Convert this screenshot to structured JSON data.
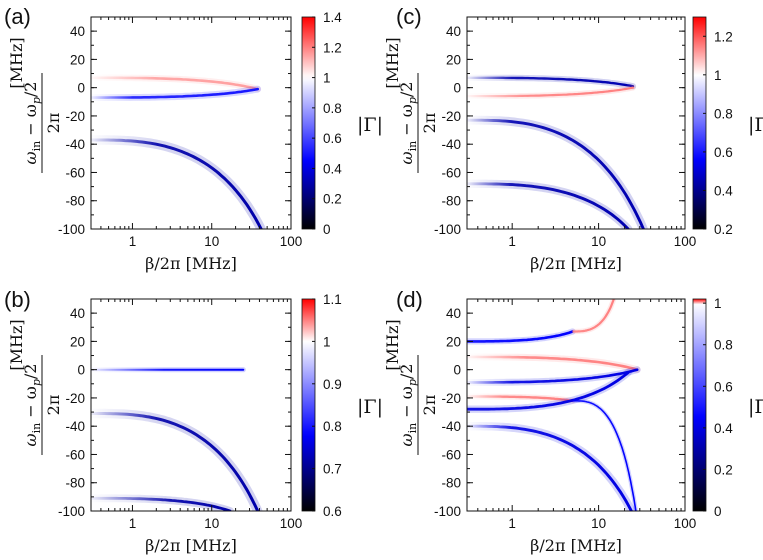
{
  "chart_data": [
    {
      "type": "heatmap",
      "panel_label": "(a)",
      "xlabel": "β/2π [MHz]",
      "ylabel_num": "ω",
      "ylabel_sub": "in",
      "ylabel_rest": " − ω",
      "ylabel_sub2": "p",
      "ylabel_tail": "/2",
      "ylabel_den": "2π",
      "ylabel_unit": "[MHz]",
      "colorbar_label": "|Γ|",
      "xscale": "log",
      "xlim": [
        0.3,
        100
      ],
      "ylim": [
        -100,
        50
      ],
      "x_ticks": [
        1,
        10,
        100
      ],
      "x_tick_labels": [
        "1",
        "10",
        "100"
      ],
      "y_ticks": [
        40,
        20,
        0,
        -20,
        -40,
        -60,
        -80,
        -100
      ],
      "y_tick_labels": [
        "40",
        "20",
        "0",
        "-20",
        "-40",
        "-60",
        "-80",
        "-100"
      ],
      "colorbar": {
        "min": 0,
        "max": 1.4,
        "white_at": 1,
        "ticks": [
          0,
          0.2,
          0.4,
          0.6,
          0.8,
          1,
          1.2,
          1.4
        ],
        "tick_labels": [
          "0",
          "0.2",
          "0.4",
          "0.6",
          "0.8",
          "1",
          "1.2",
          "1.4"
        ]
      },
      "bands": [
        {
          "name": "upper-red-branch",
          "y0": 7,
          "x_end": 38,
          "y_end": -1,
          "bend": 1.2,
          "value": 1.15,
          "w0": 2.5,
          "w1": 1.6,
          "x_fade": 2
        },
        {
          "name": "lower-blue-branch",
          "y0": -7,
          "x_end": 38,
          "y_end": -1,
          "bend": 1.2,
          "value": 0.5,
          "w0": 2.6,
          "w1": 1.6,
          "x_fade": 1
        },
        {
          "name": "dip-branch",
          "y0": -37,
          "x_end": 42,
          "y_end": -100,
          "bend": 1.9,
          "value": 0.3,
          "w0": 3.6,
          "w1": 1.2,
          "x_fade": 2
        }
      ]
    },
    {
      "type": "heatmap",
      "panel_label": "(b)",
      "xlabel": "β/2π [MHz]",
      "ylabel_num": "ω",
      "ylabel_sub": "in",
      "ylabel_rest": " − ω",
      "ylabel_sub2": "p",
      "ylabel_tail": "/2",
      "ylabel_den": "2π",
      "ylabel_unit": "[MHz]",
      "colorbar_label": "|Γ|",
      "xscale": "log",
      "xlim": [
        0.3,
        100
      ],
      "ylim": [
        -100,
        50
      ],
      "x_ticks": [
        1,
        10,
        100
      ],
      "x_tick_labels": [
        "1",
        "10",
        "100"
      ],
      "y_ticks": [
        40,
        20,
        0,
        -20,
        -40,
        -60,
        -80,
        -100
      ],
      "y_tick_labels": [
        "40",
        "20",
        "0",
        "-20",
        "-40",
        "-60",
        "-80",
        "-100"
      ],
      "colorbar": {
        "min": 0.6,
        "max": 1.1,
        "white_at": 1,
        "ticks": [
          0.6,
          0.7,
          0.8,
          0.9,
          1,
          1.1
        ],
        "tick_labels": [
          "0.6",
          "0.7",
          "0.8",
          "0.9",
          "1",
          "1.1"
        ]
      },
      "bands": [
        {
          "name": "center-blue-branch",
          "y0": 0,
          "x_end": 25,
          "y_end": 0,
          "bend": 1.0,
          "value": 0.78,
          "w0": 2.0,
          "w1": 1.2,
          "x_fade": 2.5
        },
        {
          "name": "dip-branch-1",
          "y0": -31,
          "x_end": 38,
          "y_end": -100,
          "bend": 2.0,
          "value": 0.72,
          "w0": 3.6,
          "w1": 1.2,
          "x_fade": 2
        },
        {
          "name": "dip-branch-2",
          "y0": -91,
          "x_end": 17,
          "y_end": -100,
          "bend": 1.6,
          "value": 0.72,
          "w0": 3.0,
          "w1": 1.5,
          "x_fade": 3
        }
      ]
    },
    {
      "type": "heatmap",
      "panel_label": "(c)",
      "xlabel": "β/2π [MHz]",
      "ylabel_num": "ω",
      "ylabel_sub": "in",
      "ylabel_rest": " − ω",
      "ylabel_sub2": "p",
      "ylabel_tail": "/2",
      "ylabel_den": "2π",
      "ylabel_unit": "[MHz]",
      "colorbar_label": "|Γ|",
      "xscale": "log",
      "xlim": [
        0.3,
        100
      ],
      "ylim": [
        -100,
        50
      ],
      "x_ticks": [
        1,
        10,
        100
      ],
      "x_tick_labels": [
        "1",
        "10",
        "100"
      ],
      "y_ticks": [
        40,
        20,
        0,
        -20,
        -40,
        -60,
        -80,
        -100
      ],
      "y_tick_labels": [
        "40",
        "20",
        "0",
        "-20",
        "-40",
        "-60",
        "-80",
        "-100"
      ],
      "colorbar": {
        "min": 0.2,
        "max": 1.3,
        "white_at": 1,
        "ticks": [
          0.2,
          0.4,
          0.6,
          0.8,
          1,
          1.2
        ],
        "tick_labels": [
          "0.2",
          "0.4",
          "0.6",
          "0.8",
          "1",
          "1.2"
        ]
      },
      "bands": [
        {
          "name": "upper-blue-branch",
          "y0": 7,
          "x_end": 25,
          "y_end": 1,
          "bend": 1.1,
          "value": 0.45,
          "w0": 2.4,
          "w1": 1.4,
          "x_fade": 1
        },
        {
          "name": "lower-red-branch",
          "y0": -6,
          "x_end": 25,
          "y_end": 0,
          "bend": 1.1,
          "value": 1.15,
          "w0": 2.2,
          "w1": 1.3,
          "x_fade": 1.5
        },
        {
          "name": "dip-branch-1",
          "y0": -23,
          "x_end": 33,
          "y_end": -100,
          "bend": 2.0,
          "value": 0.45,
          "w0": 3.4,
          "w1": 1.3,
          "x_fade": 1
        },
        {
          "name": "dip-branch-2",
          "y0": -68,
          "x_end": 22,
          "y_end": -100,
          "bend": 1.6,
          "value": 0.45,
          "w0": 3.2,
          "w1": 1.4,
          "x_fade": 1
        }
      ]
    },
    {
      "type": "heatmap",
      "panel_label": "(d)",
      "xlabel": "β/2π [MHz]",
      "ylabel_num": "ω",
      "ylabel_sub": "in",
      "ylabel_rest": " − ω",
      "ylabel_sub2": "p",
      "ylabel_tail": "/2",
      "ylabel_den": "2π",
      "ylabel_unit": "[MHz]",
      "colorbar_label": "|Γ|",
      "xscale": "log",
      "xlim": [
        0.3,
        100
      ],
      "ylim": [
        -100,
        50
      ],
      "x_ticks": [
        1,
        10,
        100
      ],
      "x_tick_labels": [
        "1",
        "10",
        "100"
      ],
      "y_ticks": [
        40,
        20,
        0,
        -20,
        -40,
        -60,
        -80,
        -100
      ],
      "y_tick_labels": [
        "40",
        "20",
        "0",
        "-20",
        "-40",
        "-60",
        "-80",
        "-100"
      ],
      "colorbar": {
        "min": 0,
        "max": 1.02,
        "white_at": 1,
        "ticks": [
          0,
          0.2,
          0.4,
          0.6,
          0.8,
          1
        ],
        "tick_labels": [
          "0",
          "0.2",
          "0.4",
          "0.6",
          "0.8",
          "1"
        ]
      },
      "bands": [
        {
          "name": "top-blue-branch",
          "y0": 20,
          "x_end": 5,
          "y_end": 27,
          "bend": 1.2,
          "value": 0.45,
          "w0": 2.4,
          "w1": 1.8,
          "x_fade": 0.3
        },
        {
          "name": "top-red-branch",
          "y0": 27,
          "x_end": 15,
          "y_end": 50,
          "bend": 1.4,
          "value": 1.01,
          "w0": 2.0,
          "w1": 1.5,
          "x_start": 5,
          "x_fade": 5
        },
        {
          "name": "mid-red-branch",
          "y0": 9,
          "x_end": 28,
          "y_end": 0,
          "bend": 1.1,
          "value": 1.01,
          "w0": 2.6,
          "w1": 1.5,
          "x_fade": 1.5
        },
        {
          "name": "mid-blue-branch",
          "y0": -9,
          "x_end": 28,
          "y_end": 0,
          "bend": 1.1,
          "value": 0.4,
          "w0": 2.6,
          "w1": 1.5,
          "x_fade": 1
        },
        {
          "name": "lower-red-branch",
          "y0": -19,
          "x_end": 5,
          "y_end": -22,
          "bend": 1.2,
          "value": 1.01,
          "w0": 2.2,
          "w1": 1.6,
          "x_fade": 0.8
        },
        {
          "name": "lower-blue-branch",
          "y0": -28,
          "x_end": 22,
          "y_end": -2,
          "bend": 1.4,
          "value": 0.4,
          "w0": 2.8,
          "w1": 1.6,
          "x_fade": 0.3
        },
        {
          "name": "crossing-branch",
          "y0": -22,
          "x_end": 27,
          "y_end": -100,
          "bend": 1.8,
          "value": 0.45,
          "w0": 1.6,
          "w1": 1.0,
          "x_start": 5,
          "x_fade": 5
        },
        {
          "name": "dip-branch",
          "y0": -40,
          "x_end": 24,
          "y_end": -100,
          "bend": 1.7,
          "value": 0.4,
          "w0": 3.2,
          "w1": 1.4,
          "x_fade": 1
        }
      ]
    }
  ]
}
